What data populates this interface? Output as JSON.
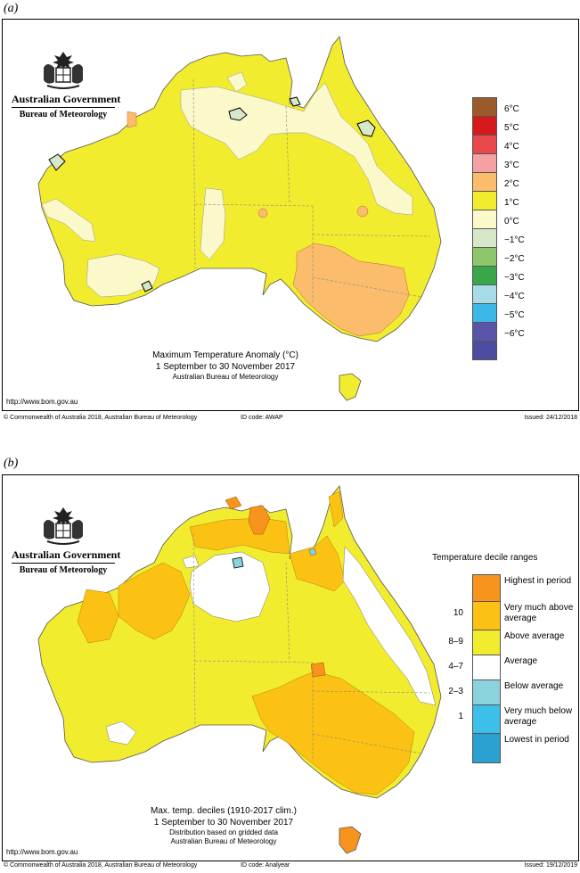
{
  "panel_a": {
    "letter": "(a)",
    "logo": {
      "government": "Australian Government",
      "bureau": "Bureau of Meteorology"
    },
    "caption": {
      "title": "Maximum Temperature Anomaly (°C)",
      "period": "1 September to 30 November 2017",
      "source": "Australian Bureau of Meteorology"
    },
    "url": "http://www.bom.gov.au",
    "footer": {
      "copyright": "© Commonwealth of Australia 2018, Australian Bureau of Meteorology",
      "id_code": "ID code: AWAP",
      "issued": "Issued: 24/12/2018"
    },
    "legend": [
      {
        "label": "6°C",
        "color": "#9c5a2a"
      },
      {
        "label": "5°C",
        "color": "#d7191c"
      },
      {
        "label": "4°C",
        "color": "#e8484a"
      },
      {
        "label": "3°C",
        "color": "#f4a1a3"
      },
      {
        "label": "2°C",
        "color": "#fbbd6b"
      },
      {
        "label": "1°C",
        "color": "#f2ec2e"
      },
      {
        "label": "0°C",
        "color": "#fbf8c9"
      },
      {
        "label": "−1°C",
        "color": "#d6e8c8"
      },
      {
        "label": "−2°C",
        "color": "#8cc56a"
      },
      {
        "label": "−3°C",
        "color": "#3aa64a"
      },
      {
        "label": "−4°C",
        "color": "#a7dbe8"
      },
      {
        "label": "−5°C",
        "color": "#3db7e8"
      },
      {
        "label": "−6°C",
        "color": "#5a55a8"
      }
    ],
    "bottom_color": "#4e4ca0"
  },
  "panel_b": {
    "letter": "(b)",
    "logo": {
      "government": "Australian Government",
      "bureau": "Bureau of Meteorology"
    },
    "caption": {
      "title": "Max. temp. deciles (1910-2017 clim.)",
      "period": "1 September to 30 November 2017",
      "note": "Distribution based on gridded data",
      "source": "Australian Bureau of Meteorology"
    },
    "url": "http://www.bom.gov.au",
    "footer": {
      "copyright": "© Commonwealth of Australia 2018, Australian Bureau of Meteorology",
      "id_code": "ID code: Analyear",
      "issued": "Issued: 19/12/2019"
    },
    "legend_title": "Temperature decile ranges",
    "legend": [
      {
        "label": "Highest in period",
        "decile": "",
        "color": "#f7941d"
      },
      {
        "label": "Very much above average",
        "decile": "10",
        "color": "#fbc214"
      },
      {
        "label": "Above average",
        "decile": "8–9",
        "color": "#f2ec2e"
      },
      {
        "label": "Average",
        "decile": "4–7",
        "color": "#ffffff"
      },
      {
        "label": "Below average",
        "decile": "2–3",
        "color": "#8ad3dd"
      },
      {
        "label": "Very much below average",
        "decile": "1",
        "color": "#3cc0ea"
      },
      {
        "label": "Lowest in period",
        "decile": "",
        "color": "#2aa0d0"
      }
    ]
  }
}
